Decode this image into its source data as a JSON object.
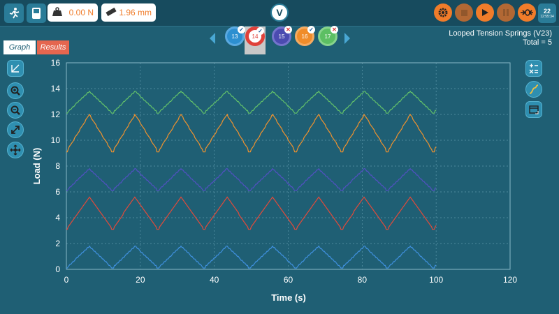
{
  "toolbar": {
    "load_readout": "0.00 N",
    "position_readout": "1.96 mm",
    "icons": [
      "runner-icon",
      "device-icon",
      "weight-icon",
      "ruler-icon",
      "logo-icon",
      "settings-icon",
      "stop-icon",
      "play-icon",
      "pause-icon",
      "zero-icon",
      "calendar-icon"
    ],
    "calendar_day": "22",
    "calendar_time": "12:55:34"
  },
  "tabs": [
    {
      "label": "Graph",
      "active": true
    },
    {
      "label": "Results",
      "active": false
    }
  ],
  "specimens": [
    {
      "label": "13",
      "color": "#2d8fd0",
      "status": "check"
    },
    {
      "label": "14",
      "color": "#e0413a",
      "status": "check",
      "selected": true
    },
    {
      "label": "15",
      "color": "#4b4bb0",
      "status": "cross"
    },
    {
      "label": "16",
      "color": "#f08c2a",
      "status": "check"
    },
    {
      "label": "17",
      "color": "#5cbf63",
      "status": "cross"
    }
  ],
  "test": {
    "name": "Looped Tension Springs (V23)",
    "total_label": "Total",
    "total_value": "5",
    "total_text": "Total  =  5"
  },
  "left_tools": [
    "axis-select-icon",
    "zoom-in-icon",
    "zoom-out-icon",
    "expand-icon",
    "pan-icon"
  ],
  "right_tools": [
    "calculator-icon",
    "curve-icon",
    "window-icon"
  ],
  "chart_data": {
    "type": "line",
    "xlabel": "Time (s)",
    "ylabel": "Load (N)",
    "xlim": [
      0,
      120
    ],
    "ylim": [
      0,
      16
    ],
    "xticks": [
      0,
      20,
      40,
      60,
      80,
      100,
      120
    ],
    "yticks": [
      0,
      2,
      4,
      6,
      8,
      10,
      12,
      14,
      16
    ],
    "grid": true,
    "series": [
      {
        "color": "#3f8fdc",
        "pattern": "triangle",
        "min": 0.1,
        "max": 1.8,
        "period": 12.4,
        "x_end": 100
      },
      {
        "color": "#e34a3a",
        "pattern": "triangle",
        "min": 3.1,
        "max": 5.6,
        "period": 12.4,
        "x_end": 100
      },
      {
        "color": "#5151c1",
        "pattern": "triangle",
        "min": 6.1,
        "max": 7.8,
        "period": 12.4,
        "x_end": 100
      },
      {
        "color": "#f0922e",
        "pattern": "triangle",
        "min": 9.1,
        "max": 12.0,
        "period": 12.4,
        "x_end": 100
      },
      {
        "color": "#62c06a",
        "pattern": "triangle",
        "min": 12.1,
        "max": 13.8,
        "period": 12.4,
        "x_end": 100
      }
    ]
  }
}
